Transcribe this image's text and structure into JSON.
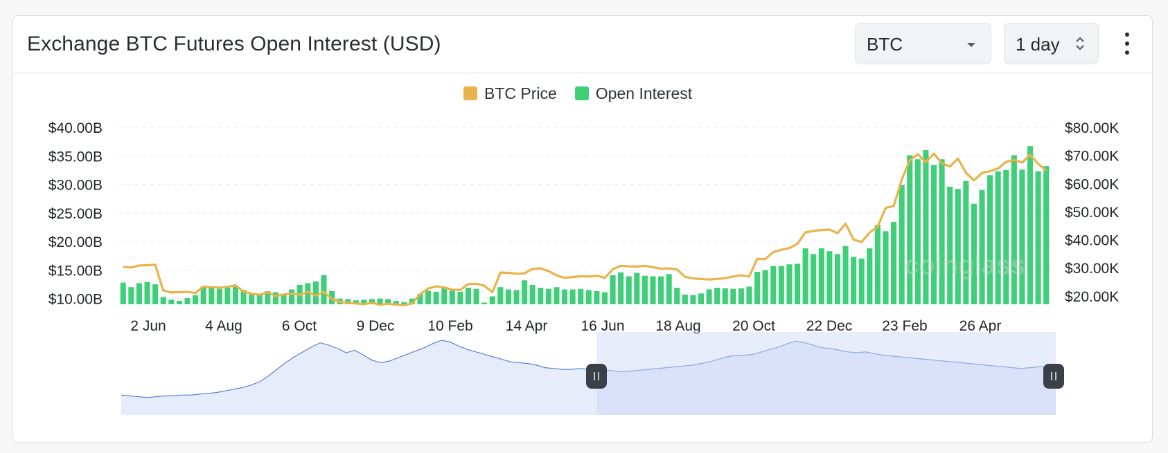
{
  "header": {
    "title": "Exchange BTC Futures Open Interest (USD)",
    "coin_select": "BTC",
    "interval_select": "1 day"
  },
  "legend": [
    {
      "label": "BTC Price",
      "color": "#e8b34a"
    },
    {
      "label": "Open Interest",
      "color": "#3ecf78"
    }
  ],
  "watermark": "coinglass",
  "chart_data": {
    "type": "bar",
    "x_tick_labels": [
      "2 Jun",
      "4 Aug",
      "6 Oct",
      "9 Dec",
      "10 Feb",
      "14 Apr",
      "16 Jun",
      "18 Aug",
      "20 Oct",
      "22 Dec",
      "23 Feb",
      "26 Apr"
    ],
    "y_left_tick_labels": [
      "$40.00B",
      "$35.00B",
      "$30.00B",
      "$25.00B",
      "$20.00B",
      "$15.00B",
      "$10.00B"
    ],
    "y_right_tick_labels": [
      "$80.00K",
      "$70.00K",
      "$60.00K",
      "$50.00K",
      "$40.00K",
      "$30.00K",
      "$20.00K"
    ],
    "ylim_left": [
      9,
      40
    ],
    "ylim_right": [
      17,
      80
    ],
    "grid": true,
    "legend_position": "top-center",
    "series": [
      {
        "name": "Open Interest",
        "axis": "left",
        "unit": "USD billions",
        "values": [
          12.8,
          12.0,
          12.7,
          12.9,
          12.5,
          10.3,
          9.8,
          9.6,
          10.1,
          10.6,
          12.1,
          11.9,
          11.7,
          11.9,
          12.1,
          11.5,
          11.0,
          10.8,
          11.3,
          11.1,
          10.7,
          11.6,
          12.4,
          12.7,
          13.0,
          14.1,
          11.3,
          10.0,
          9.9,
          9.7,
          9.8,
          9.9,
          10.0,
          9.9,
          9.6,
          9.4,
          10.0,
          10.8,
          11.4,
          11.2,
          11.8,
          11.4,
          11.2,
          11.9,
          11.7,
          9.3,
          10.4,
          12.0,
          11.6,
          11.5,
          13.2,
          12.4,
          11.9,
          11.7,
          12.0,
          11.6,
          11.6,
          11.7,
          11.5,
          11.3,
          11.1,
          14.1,
          14.6,
          13.9,
          14.5,
          14.0,
          13.9,
          13.9,
          14.3,
          11.9,
          10.7,
          10.6,
          10.9,
          11.6,
          11.9,
          11.8,
          11.7,
          11.8,
          12.1,
          14.7,
          15.0,
          15.7,
          15.7,
          16.0,
          16.1,
          18.8,
          17.8,
          18.8,
          18.3,
          17.8,
          19.2,
          17.3,
          17.0,
          18.8,
          22.9,
          21.8,
          23.4,
          29.9,
          35.1,
          34.4,
          36.0,
          33.4,
          34.4,
          29.6,
          29.2,
          30.6,
          26.6,
          29.0,
          31.6,
          32.3,
          32.5,
          35.1,
          32.6,
          36.7,
          32.3,
          33.2
        ]
      },
      {
        "name": "BTC Price",
        "axis": "right",
        "unit": "USD thousands",
        "values": [
          30.3,
          30.1,
          30.8,
          30.9,
          31.1,
          21.9,
          21.2,
          21.3,
          21.4,
          21.0,
          23.3,
          23.1,
          22.9,
          23.2,
          23.8,
          21.5,
          20.8,
          20.4,
          21.3,
          19.9,
          20.5,
          20.8,
          20.4,
          21.4,
          20.1,
          21.4,
          18.9,
          17.9,
          17.5,
          17.3,
          17.0,
          17.6,
          16.8,
          17.2,
          16.9,
          16.7,
          17.3,
          20.6,
          22.6,
          23.4,
          23.0,
          22.2,
          22.1,
          24.2,
          24.3,
          23.6,
          21.3,
          28.3,
          28.2,
          27.9,
          28.0,
          29.6,
          29.8,
          28.8,
          27.3,
          26.4,
          26.7,
          27.0,
          26.9,
          27.2,
          26.4,
          29.5,
          30.7,
          30.5,
          30.4,
          30.7,
          30.2,
          29.7,
          29.8,
          29.4,
          26.8,
          26.2,
          26.0,
          25.8,
          26.0,
          26.3,
          26.9,
          27.3,
          26.9,
          33.2,
          33.1,
          35.6,
          36.4,
          37.0,
          38.5,
          42.6,
          43.1,
          43.4,
          43.6,
          42.3,
          45.7,
          40.0,
          39.2,
          42.5,
          44.6,
          51.3,
          52.0,
          61.4,
          68.2,
          70.4,
          67.6,
          70.6,
          67.2,
          66.0,
          68.9,
          63.8,
          61.1,
          63.7,
          64.4,
          65.3,
          67.7,
          68.3,
          67.4,
          70.2,
          67.0,
          64.6
        ]
      }
    ],
    "navigator": {
      "selected_range": "16 Jun – end",
      "overview_values": [
        24,
        23,
        22,
        21,
        22,
        23,
        23,
        24,
        24,
        25,
        26,
        27,
        29,
        31,
        33,
        36,
        40,
        47,
        55,
        63,
        70,
        76,
        82,
        87,
        84,
        80,
        75,
        78,
        72,
        66,
        63,
        65,
        69,
        73,
        77,
        81,
        86,
        90,
        88,
        83,
        79,
        76,
        73,
        70,
        67,
        64,
        63,
        62,
        60,
        57,
        56,
        55,
        55,
        56,
        55,
        54,
        54,
        53,
        52,
        53,
        54,
        55,
        56,
        57,
        58,
        59,
        60,
        62,
        64,
        67,
        70,
        72,
        72,
        73,
        76,
        79,
        82,
        86,
        89,
        87,
        84,
        81,
        80,
        78,
        76,
        75,
        76,
        74,
        72,
        71,
        70,
        69,
        68,
        67,
        66,
        65,
        64,
        63,
        62,
        61,
        60,
        59,
        58,
        57,
        56,
        57,
        58,
        59,
        60
      ]
    }
  }
}
